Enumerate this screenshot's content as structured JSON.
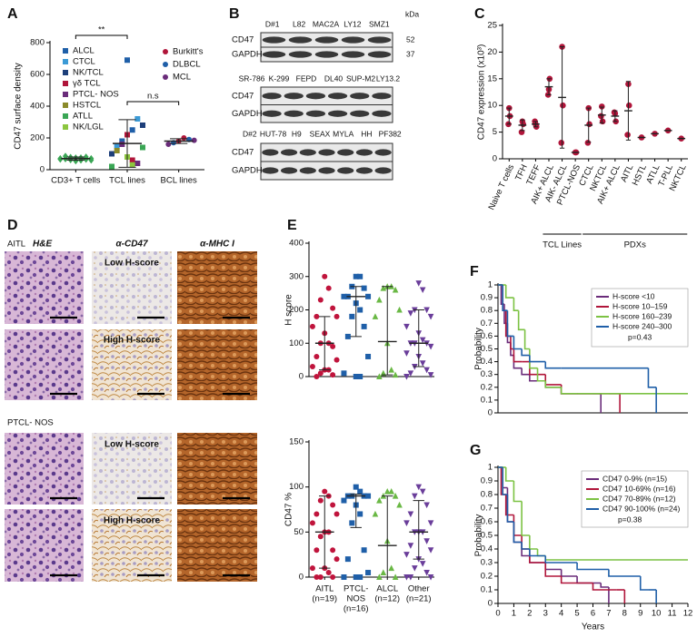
{
  "chart_data": [
    {
      "type": "strip",
      "label": "A",
      "ylabel": "CD47 surface density",
      "categories": [
        "CD3+ T cells",
        "TCL lines",
        "BCL lines"
      ],
      "ylim": [
        0,
        800
      ],
      "yticks": [
        0,
        200,
        400,
        600,
        800
      ],
      "annotations": [
        "**",
        "n.s"
      ],
      "series": [
        {
          "category": 0,
          "color": "#3aa655",
          "marker": "diamond",
          "values": [
            55,
            60,
            62,
            65,
            68,
            70,
            70,
            72,
            75,
            78,
            80,
            85,
            60,
            66,
            74
          ]
        },
        {
          "name": "ALCL",
          "category": 1,
          "color": "#1f5fa8",
          "marker": "square",
          "values": [
            690,
            250,
            180
          ]
        },
        {
          "name": "CTCL",
          "category": 1,
          "color": "#3b9ad6",
          "marker": "square",
          "values": [
            320,
            150
          ]
        },
        {
          "name": "NK/TCL",
          "category": 1,
          "color": "#1d3f7a",
          "marker": "square",
          "values": [
            280,
            100
          ]
        },
        {
          "name": "γδ TCL",
          "category": 1,
          "color": "#b0153a",
          "marker": "square",
          "values": [
            220,
            60
          ]
        },
        {
          "name": "PTCL- NOS",
          "category": 1,
          "color": "#6a2c7a",
          "marker": "square",
          "values": [
            160,
            40
          ]
        },
        {
          "name": "HSTCL",
          "category": 1,
          "color": "#8a8a2a",
          "marker": "square",
          "values": [
            120
          ]
        },
        {
          "name": "ATLL",
          "category": 1,
          "color": "#3aa655",
          "marker": "square",
          "values": [
            140,
            20
          ]
        },
        {
          "name": "NK/LGL",
          "category": 1,
          "color": "#8cc63f",
          "marker": "square",
          "values": [
            80,
            30
          ]
        },
        {
          "name": "Burkitt's",
          "category": 2,
          "color": "#b0153a",
          "marker": "circle",
          "values": [
            180,
            200
          ]
        },
        {
          "name": "DLBCL",
          "category": 2,
          "color": "#1f5fa8",
          "marker": "circle",
          "values": [
            170,
            190
          ]
        },
        {
          "name": "MCL",
          "category": 2,
          "color": "#6a2c7a",
          "marker": "circle",
          "values": [
            160,
            185
          ]
        }
      ],
      "summary": [
        {
          "mean": 70,
          "sd": 10
        },
        {
          "mean": 165,
          "sd": 150
        },
        {
          "mean": 180,
          "sd": 15
        }
      ]
    },
    {
      "type": "strip",
      "label": "C",
      "ylabel": "CD47 expression (x10³)",
      "categories": [
        "Naive T cells",
        "TFH",
        "TEFF",
        "AIK+ ALCL",
        "AIK- ALCL",
        "PTCL-NOS",
        "CTCL",
        "NKTCL",
        "AIK+ ALCL",
        "AITL",
        "HSTL",
        "ATLL",
        "T-PLL",
        "NKTCL"
      ],
      "groups": [
        "TCL Lines",
        "PDXs"
      ],
      "ylim": [
        0,
        25
      ],
      "yticks": [
        0,
        5,
        10,
        15,
        20,
        25
      ],
      "color": "#b0153a",
      "marker": "circle",
      "series": [
        {
          "category": 0,
          "values": [
            9.5,
            8,
            6.5
          ]
        },
        {
          "category": 1,
          "values": [
            7,
            6.5,
            5
          ]
        },
        {
          "category": 2,
          "values": [
            6.5,
            6,
            7
          ]
        },
        {
          "category": 3,
          "values": [
            13,
            15,
            12
          ]
        },
        {
          "category": 4,
          "values": [
            21,
            10,
            3
          ]
        },
        {
          "category": 5,
          "values": [
            1.2,
            1.2
          ]
        },
        {
          "category": 6,
          "values": [
            9.5,
            6.5,
            3
          ]
        },
        {
          "category": 7,
          "values": [
            9.8,
            7,
            8
          ]
        },
        {
          "category": 8,
          "values": [
            8.5,
            7,
            8.7
          ]
        },
        {
          "category": 9,
          "values": [
            14,
            10,
            4.5
          ]
        },
        {
          "category": 10,
          "values": [
            4
          ]
        },
        {
          "category": 11,
          "values": [
            4.7
          ]
        },
        {
          "category": 12,
          "values": [
            5.3
          ]
        },
        {
          "category": 13,
          "values": [
            3.8
          ]
        }
      ],
      "summary": [
        {
          "mean": 8,
          "sd": 1.5
        },
        {
          "mean": 6.3,
          "sd": 1
        },
        {
          "mean": 6.5,
          "sd": 0.5
        },
        {
          "mean": 13.5,
          "sd": 1.5
        },
        {
          "mean": 11.5,
          "sd": 9.5
        },
        {
          "mean": 1.2
        },
        {
          "mean": 6.3,
          "sd": 3.2
        },
        {
          "mean": 8.2,
          "sd": 1.5
        },
        {
          "mean": 8,
          "sd": 1
        },
        {
          "mean": 9,
          "sd": 5.5
        },
        {
          "mean": 4
        },
        {
          "mean": 4.7
        },
        {
          "mean": 5.3
        },
        {
          "mean": 3.8
        }
      ]
    },
    {
      "type": "strip",
      "label": "E",
      "ylabel": "H score",
      "ylim": [
        0,
        400
      ],
      "yticks": [
        0,
        100,
        200,
        300,
        400
      ],
      "series": [
        {
          "category": 0,
          "color": "#c0143c",
          "marker": "circle",
          "values": [
            300,
            265,
            230,
            205,
            180,
            180,
            150,
            130,
            100,
            100,
            90,
            60,
            50,
            30,
            20,
            20,
            10,
            5,
            0
          ]
        },
        {
          "category": 1,
          "color": "#1f5fa8",
          "marker": "square",
          "values": [
            300,
            300,
            270,
            265,
            240,
            240,
            240,
            220,
            200,
            180,
            150,
            120,
            60,
            10,
            0,
            0
          ]
        },
        {
          "category": 2,
          "color": "#6ab845",
          "marker": "triangle",
          "values": [
            270,
            270,
            265,
            260,
            230,
            200,
            180,
            100,
            20,
            10,
            5,
            0
          ]
        },
        {
          "category": 3,
          "color": "#6a3d9a",
          "marker": "triangle-down",
          "values": [
            280,
            260,
            200,
            200,
            190,
            180,
            150,
            130,
            110,
            100,
            100,
            100,
            90,
            70,
            60,
            40,
            30,
            20,
            10,
            5,
            0
          ]
        }
      ],
      "summary": [
        {
          "median": 100,
          "low": 20,
          "high": 180
        },
        {
          "median": 240,
          "low": 120,
          "high": 270
        },
        {
          "median": 105,
          "low": 5,
          "high": 270
        },
        {
          "median": 100,
          "low": 30,
          "high": 200
        }
      ]
    },
    {
      "type": "strip",
      "ylabel": "CD47 %",
      "categories": [
        [
          "AITL",
          "(n=19)"
        ],
        [
          "PTCL-",
          "NOS",
          "(n=16)"
        ],
        [
          "ALCL",
          "(n=12)"
        ],
        [
          "Other",
          "(n=21)"
        ]
      ],
      "ylim": [
        0,
        150
      ],
      "yticks": [
        0,
        50,
        100,
        150
      ],
      "series": [
        {
          "category": 0,
          "color": "#c0143c",
          "marker": "circle",
          "values": [
            95,
            90,
            85,
            80,
            70,
            70,
            60,
            50,
            50,
            45,
            30,
            30,
            20,
            10,
            10,
            5,
            0,
            0,
            0
          ]
        },
        {
          "category": 1,
          "color": "#1f5fa8",
          "marker": "square",
          "values": [
            100,
            95,
            90,
            90,
            90,
            90,
            85,
            80,
            70,
            60,
            30,
            20,
            5,
            0,
            0,
            0
          ]
        },
        {
          "category": 2,
          "color": "#6ab845",
          "marker": "triangle",
          "values": [
            95,
            95,
            90,
            90,
            85,
            80,
            70,
            40,
            10,
            5,
            0,
            0
          ]
        },
        {
          "category": 3,
          "color": "#6a3d9a",
          "marker": "triangle-down",
          "values": [
            100,
            95,
            90,
            80,
            70,
            60,
            60,
            50,
            50,
            50,
            40,
            35,
            30,
            25,
            20,
            15,
            10,
            5,
            0,
            0,
            0
          ]
        }
      ],
      "summary": [
        {
          "median": 50,
          "low": 10,
          "high": 90
        },
        {
          "median": 90,
          "low": 55,
          "high": 92
        },
        {
          "median": 35,
          "low": 0,
          "high": 90
        },
        {
          "median": 50,
          "low": 20,
          "high": 85
        }
      ]
    },
    {
      "type": "survival",
      "label": "F",
      "ylabel": "Probability",
      "annotation": "p=0.43",
      "xlim": [
        0,
        12
      ],
      "ylim": [
        0,
        1
      ],
      "yticks": [
        0,
        0.1,
        0.2,
        0.3,
        0.4,
        0.5,
        0.6,
        0.7,
        0.8,
        0.9,
        1
      ],
      "series": [
        {
          "name": "H-score <10",
          "color": "#6a2c7a",
          "x": [
            0,
            0.2,
            0.4,
            0.6,
            0.8,
            1,
            1.5,
            2,
            3,
            4,
            6,
            6.5
          ],
          "values": [
            1,
            0.85,
            0.7,
            0.55,
            0.45,
            0.35,
            0.3,
            0.25,
            0.2,
            0.15,
            0.15,
            0
          ]
        },
        {
          "name": "H-score 10–159",
          "color": "#b0153a",
          "x": [
            0,
            0.3,
            0.5,
            0.8,
            1,
            1.5,
            2,
            3,
            4,
            5,
            7,
            7.7
          ],
          "values": [
            1,
            0.8,
            0.6,
            0.5,
            0.4,
            0.4,
            0.3,
            0.22,
            0.15,
            0.15,
            0.15,
            0
          ]
        },
        {
          "name": "H-score 160–239",
          "color": "#7cc243",
          "x": [
            0,
            0.5,
            1,
            1.3,
            1.7,
            2,
            2.5,
            3,
            4,
            5,
            12
          ],
          "values": [
            1,
            0.9,
            0.8,
            0.65,
            0.5,
            0.35,
            0.25,
            0.2,
            0.15,
            0.15,
            0.15
          ]
        },
        {
          "name": "H-score 240–300",
          "color": "#1f5fa8",
          "x": [
            0,
            0.3,
            0.6,
            1,
            1.5,
            2,
            3,
            4,
            6,
            9.5,
            10
          ],
          "values": [
            1,
            0.8,
            0.6,
            0.5,
            0.45,
            0.4,
            0.35,
            0.35,
            0.35,
            0.2,
            0
          ]
        }
      ]
    },
    {
      "type": "survival",
      "label": "G",
      "ylabel": "Probability",
      "xlabel": "Years",
      "annotation": "p=0.38",
      "xlim": [
        0,
        12
      ],
      "xticks": [
        0,
        1,
        2,
        3,
        4,
        5,
        6,
        7,
        8,
        9,
        10,
        11,
        12
      ],
      "ylim": [
        0,
        1
      ],
      "yticks": [
        0,
        0.1,
        0.2,
        0.3,
        0.4,
        0.5,
        0.6,
        0.7,
        0.8,
        0.9,
        1
      ],
      "series": [
        {
          "name": "CD47 0-9% (n=15)",
          "color": "#6a2c7a",
          "x": [
            0,
            0.3,
            0.6,
            1,
            1.5,
            2,
            3,
            4,
            5,
            6.5,
            7
          ],
          "values": [
            1,
            0.85,
            0.6,
            0.45,
            0.35,
            0.3,
            0.25,
            0.2,
            0.15,
            0.12,
            0
          ]
        },
        {
          "name": "CD47 10-69% (n=16)",
          "color": "#b0153a",
          "x": [
            0,
            0.2,
            0.5,
            1,
            1.5,
            2,
            3,
            4,
            6,
            7.5,
            8
          ],
          "values": [
            1,
            0.8,
            0.65,
            0.5,
            0.4,
            0.3,
            0.2,
            0.15,
            0.1,
            0.1,
            0
          ]
        },
        {
          "name": "CD47 70-89% (n=12)",
          "color": "#7cc243",
          "x": [
            0,
            0.5,
            1,
            1.5,
            2,
            2.5,
            3,
            12
          ],
          "values": [
            1,
            0.9,
            0.75,
            0.5,
            0.4,
            0.35,
            0.32,
            0.32
          ]
        },
        {
          "name": "CD47 90-100% (n=24)",
          "color": "#1f5fa8",
          "x": [
            0,
            0.3,
            0.6,
            1,
            1.5,
            2,
            3,
            5,
            7,
            9,
            9.5,
            10
          ],
          "values": [
            1,
            0.8,
            0.6,
            0.45,
            0.4,
            0.35,
            0.3,
            0.25,
            0.2,
            0.1,
            0.1,
            0
          ]
        }
      ]
    }
  ],
  "blot": {
    "label": "B",
    "unit": "kDa",
    "panels": [
      {
        "lanes": [
          "D#1",
          "L82",
          "MAC2A",
          "LY12",
          "SMZ1"
        ],
        "rows": [
          "CD47",
          "GAPDH"
        ],
        "markers": [
          "52",
          "37"
        ]
      },
      {
        "lanes": [
          "SR-786",
          "K-299",
          "FEPD",
          "DL40",
          "SUP-M2",
          "LY13.2"
        ],
        "rows": [
          "CD47",
          "GAPDH"
        ]
      },
      {
        "lanes": [
          "D#2",
          "HUT-78",
          "H9",
          "SEAX",
          "MYLA",
          "HH",
          "PF382"
        ],
        "rows": [
          "CD47",
          "GAPDH"
        ]
      }
    ]
  },
  "histology": {
    "label": "D",
    "columns": [
      "H&E",
      "α-CD47",
      "α-MHC I"
    ],
    "groups": [
      {
        "name": "AITL",
        "rows": [
          "Low H-score",
          "High H-score"
        ]
      },
      {
        "name": "PTCL- NOS",
        "rows": [
          "Low H-score",
          "High H-score"
        ]
      }
    ]
  }
}
